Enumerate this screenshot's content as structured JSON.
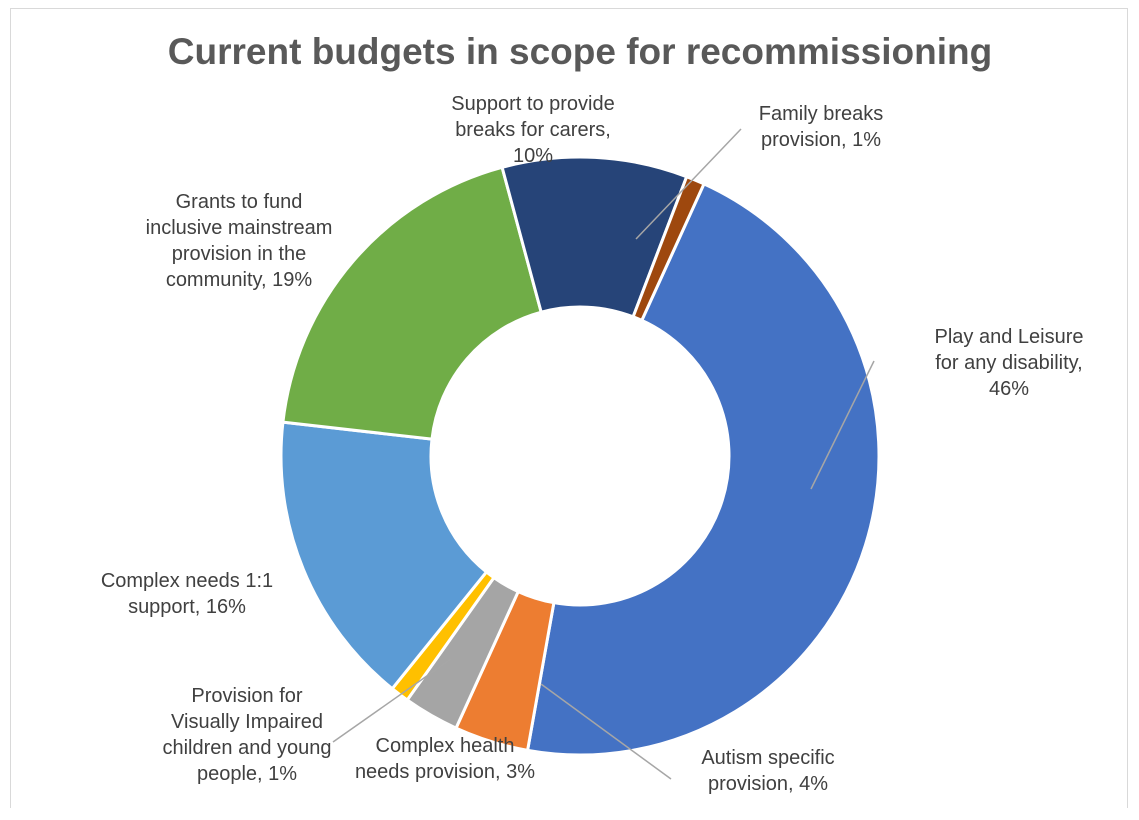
{
  "chart_data": {
    "type": "pie",
    "variant": "doughnut",
    "title": "Current budgets in scope for recommissioning",
    "slices": [
      {
        "name": "Play and Leisure for any disability",
        "value": 46,
        "label_lines": [
          "Play and Leisure",
          "for any disability,",
          "46%"
        ],
        "color": "#4472c4"
      },
      {
        "name": "Autism specific provision",
        "value": 4,
        "label_lines": [
          "Autism specific",
          "provision, 4%"
        ],
        "color": "#ed7d31"
      },
      {
        "name": "Complex health needs provision",
        "value": 3,
        "label_lines": [
          "Complex health",
          "needs provision, 3%"
        ],
        "color": "#a5a5a5"
      },
      {
        "name": "Provision for Visually Impaired children and young people",
        "value": 1,
        "label_lines": [
          "Provision for",
          "Visually Impaired",
          "children and young",
          "people, 1%"
        ],
        "color": "#ffc000"
      },
      {
        "name": "Complex needs 1:1 support",
        "value": 16,
        "label_lines": [
          "Complex needs 1:1",
          "support, 16%"
        ],
        "color": "#5b9bd5"
      },
      {
        "name": "Grants to fund inclusive mainstream provision in the community",
        "value": 19,
        "label_lines": [
          "Grants to fund",
          "inclusive mainstream",
          "provision in the",
          "community, 19%"
        ],
        "color": "#70ad47"
      },
      {
        "name": "Support to provide breaks for carers",
        "value": 10,
        "label_lines": [
          "Support to provide",
          "breaks for carers,",
          "10%"
        ],
        "color": "#264478"
      },
      {
        "name": "Family breaks provision",
        "value": 1,
        "label_lines": [
          "Family breaks",
          "provision, 1%"
        ],
        "color": "#9e480e"
      }
    ]
  }
}
